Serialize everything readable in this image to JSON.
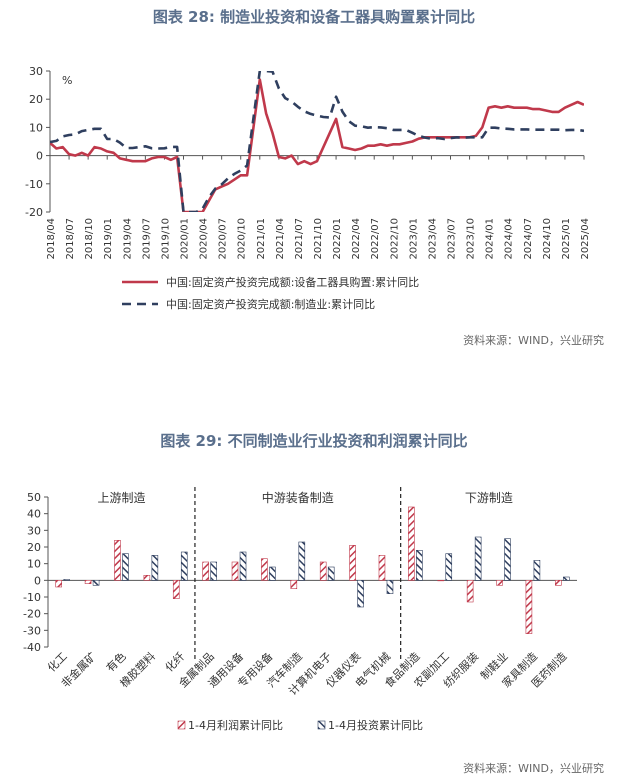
{
  "figure1": {
    "title": "图表 28: 制造业投资和设备工器具购置累计同比",
    "source": "资料来源：WIND，兴业研究",
    "chart_data": {
      "type": "line",
      "unit_label": "%",
      "ylim": [
        -20,
        30
      ],
      "yticks": [
        -20,
        -10,
        0,
        10,
        20,
        30
      ],
      "x": [
        "2018/04",
        "2018/07",
        "2018/10",
        "2019/01",
        "2019/04",
        "2019/07",
        "2019/10",
        "2020/01",
        "2020/04",
        "2020/07",
        "2020/10",
        "2021/01",
        "2021/04",
        "2021/07",
        "2021/10",
        "2022/01",
        "2022/04",
        "2022/07",
        "2022/10",
        "2023/01",
        "2023/04",
        "2023/07",
        "2023/10",
        "2024/01",
        "2024/04",
        "2024/07",
        "2024/10",
        "2025/01",
        "2025/04"
      ],
      "series": [
        {
          "name": "中国:固定资产投资完成额:设备工器具购置:累计同比",
          "color": "#c0394b",
          "style": "solid",
          "points": [
            [
              "2018/04",
              4.5
            ],
            [
              "2018/05",
              2.5
            ],
            [
              "2018/06",
              3
            ],
            [
              "2018/07",
              0.5
            ],
            [
              "2018/08",
              0
            ],
            [
              "2018/09",
              1
            ],
            [
              "2018/10",
              0
            ],
            [
              "2018/11",
              3
            ],
            [
              "2018/12",
              2.5
            ],
            [
              "2019/01",
              1.5
            ],
            [
              "2019/02",
              1
            ],
            [
              "2019/03",
              -1
            ],
            [
              "2019/04",
              -1.5
            ],
            [
              "2019/05",
              -2
            ],
            [
              "2019/06",
              -2
            ],
            [
              "2019/07",
              -2
            ],
            [
              "2019/08",
              -1
            ],
            [
              "2019/09",
              -0.5
            ],
            [
              "2019/10",
              -0.5
            ],
            [
              "2019/11",
              -1.5
            ],
            [
              "2019/12",
              -0.5
            ],
            [
              "2020/01",
              -20
            ],
            [
              "2020/02",
              -20
            ],
            [
              "2020/03",
              -20
            ],
            [
              "2020/04",
              -20
            ],
            [
              "2020/05",
              -16
            ],
            [
              "2020/06",
              -12
            ],
            [
              "2020/07",
              -11
            ],
            [
              "2020/08",
              -10
            ],
            [
              "2020/09",
              -8.5
            ],
            [
              "2020/10",
              -7
            ],
            [
              "2020/11",
              -7
            ],
            [
              "2021/01",
              27
            ],
            [
              "2021/02",
              15
            ],
            [
              "2021/03",
              8
            ],
            [
              "2021/04",
              -0.5
            ],
            [
              "2021/05",
              -1
            ],
            [
              "2021/06",
              0
            ],
            [
              "2021/07",
              -3
            ],
            [
              "2021/08",
              -2
            ],
            [
              "2021/09",
              -3
            ],
            [
              "2021/10",
              -2
            ],
            [
              "2022/01",
              13
            ],
            [
              "2022/02",
              3
            ],
            [
              "2022/03",
              2.5
            ],
            [
              "2022/04",
              2
            ],
            [
              "2022/05",
              2.5
            ],
            [
              "2022/06",
              3.5
            ],
            [
              "2022/07",
              3.5
            ],
            [
              "2022/08",
              4
            ],
            [
              "2022/09",
              3.5
            ],
            [
              "2022/10",
              4
            ],
            [
              "2022/11",
              4
            ],
            [
              "2022/12",
              4.5
            ],
            [
              "2023/01",
              5
            ],
            [
              "2023/02",
              6
            ],
            [
              "2023/03",
              6.5
            ],
            [
              "2023/04",
              6.5
            ],
            [
              "2023/05",
              6.5
            ],
            [
              "2023/06",
              6.5
            ],
            [
              "2023/07",
              6.5
            ],
            [
              "2023/08",
              6.5
            ],
            [
              "2023/09",
              6.5
            ],
            [
              "2023/10",
              6.5
            ],
            [
              "2023/11",
              7
            ],
            [
              "2023/12",
              10
            ],
            [
              "2024/01",
              17
            ],
            [
              "2024/02",
              17.5
            ],
            [
              "2024/03",
              17
            ],
            [
              "2024/04",
              17.5
            ],
            [
              "2024/05",
              17
            ],
            [
              "2024/06",
              17
            ],
            [
              "2024/07",
              17
            ],
            [
              "2024/08",
              16.5
            ],
            [
              "2024/09",
              16.5
            ],
            [
              "2024/10",
              16
            ],
            [
              "2024/11",
              15.5
            ],
            [
              "2024/12",
              15.5
            ],
            [
              "2025/01",
              17
            ],
            [
              "2025/02",
              18
            ],
            [
              "2025/03",
              19
            ],
            [
              "2025/04",
              18
            ]
          ]
        },
        {
          "name": "中国:固定资产投资完成额:制造业:累计同比",
          "color": "#2f3f5f",
          "style": "dashed",
          "points": [
            [
              "2018/04",
              4.8
            ],
            [
              "2018/05",
              5.2
            ],
            [
              "2018/06",
              6.8
            ],
            [
              "2018/07",
              7.3
            ],
            [
              "2018/08",
              7.5
            ],
            [
              "2018/09",
              8.7
            ],
            [
              "2018/10",
              9.1
            ],
            [
              "2018/11",
              9.5
            ],
            [
              "2018/12",
              9.5
            ],
            [
              "2019/01",
              5.9
            ],
            [
              "2019/02",
              5.9
            ],
            [
              "2019/03",
              4.6
            ],
            [
              "2019/04",
              2.7
            ],
            [
              "2019/05",
              2.7
            ],
            [
              "2019/06",
              3
            ],
            [
              "2019/07",
              3.3
            ],
            [
              "2019/08",
              2.6
            ],
            [
              "2019/09",
              2.5
            ],
            [
              "2019/10",
              2.6
            ],
            [
              "2019/11",
              3.1
            ],
            [
              "2019/12",
              3.1
            ],
            [
              "2020/01",
              -20
            ],
            [
              "2020/02",
              -20
            ],
            [
              "2020/03",
              -20
            ],
            [
              "2020/04",
              -18.8
            ],
            [
              "2020/05",
              -14.8
            ],
            [
              "2020/06",
              -11.7
            ],
            [
              "2020/07",
              -10.2
            ],
            [
              "2020/08",
              -8.1
            ],
            [
              "2020/09",
              -6.5
            ],
            [
              "2020/10",
              -5.3
            ],
            [
              "2020/11",
              -3.5
            ],
            [
              "2021/01",
              30
            ],
            [
              "2021/02",
              30
            ],
            [
              "2021/03",
              29.8
            ],
            [
              "2021/04",
              23.8
            ],
            [
              "2021/05",
              20.4
            ],
            [
              "2021/06",
              19.2
            ],
            [
              "2021/07",
              17.3
            ],
            [
              "2021/08",
              15.7
            ],
            [
              "2021/09",
              14.8
            ],
            [
              "2021/10",
              14.2
            ],
            [
              "2021/11",
              13.7
            ],
            [
              "2021/12",
              13.5
            ],
            [
              "2022/01",
              20.9
            ],
            [
              "2022/02",
              15.6
            ],
            [
              "2022/03",
              12.2
            ],
            [
              "2022/04",
              10.6
            ],
            [
              "2022/05",
              10.4
            ],
            [
              "2022/06",
              9.9
            ],
            [
              "2022/07",
              10.1
            ],
            [
              "2022/08",
              10
            ],
            [
              "2022/09",
              9.7
            ],
            [
              "2022/10",
              9.1
            ],
            [
              "2022/11",
              9.1
            ],
            [
              "2022/12",
              9.1
            ],
            [
              "2023/01",
              8.1
            ],
            [
              "2023/02",
              7
            ],
            [
              "2023/03",
              6.4
            ],
            [
              "2023/04",
              6
            ],
            [
              "2023/05",
              6.2
            ],
            [
              "2023/06",
              5.9
            ],
            [
              "2023/07",
              6.2
            ],
            [
              "2023/08",
              6.5
            ],
            [
              "2023/09",
              6.3
            ],
            [
              "2023/10",
              6.5
            ],
            [
              "2023/11",
              6.5
            ],
            [
              "2023/12",
              6.5
            ],
            [
              "2024/01",
              9.9
            ],
            [
              "2024/02",
              9.9
            ],
            [
              "2024/03",
              9.6
            ],
            [
              "2024/04",
              9.5
            ],
            [
              "2024/05",
              9.3
            ],
            [
              "2024/06",
              9.3
            ],
            [
              "2024/07",
              9.3
            ],
            [
              "2024/08",
              9.2
            ],
            [
              "2024/09",
              9.2
            ],
            [
              "2024/10",
              9.2
            ],
            [
              "2024/11",
              9.2
            ],
            [
              "2024/12",
              9.2
            ],
            [
              "2025/01",
              9
            ],
            [
              "2025/02",
              9.1
            ],
            [
              "2025/03",
              9.1
            ],
            [
              "2025/04",
              8.8
            ]
          ]
        }
      ]
    }
  },
  "figure2": {
    "title": "图表 29: 不同制造业行业投资和利润累计同比",
    "source": "资料来源：WIND，兴业研究",
    "chart_data": {
      "type": "bar",
      "ylim": [
        -40,
        50
      ],
      "yticks": [
        -40,
        -30,
        -20,
        -10,
        0,
        10,
        20,
        30,
        40,
        50
      ],
      "groups": [
        {
          "label": "上游制造",
          "start": 0,
          "end": 4
        },
        {
          "label": "中游装备制造",
          "start": 5,
          "end": 11
        },
        {
          "label": "下游制造",
          "start": 12,
          "end": 17
        }
      ],
      "categories": [
        "化工",
        "非金属矿",
        "有色",
        "橡胶塑料",
        "化纤",
        "金属制品",
        "通用设备",
        "专用设备",
        "汽车制造",
        "计算机电子",
        "仪器仪表",
        "电气机械",
        "食品制造",
        "农副加工",
        "纺织服装",
        "制鞋业",
        "家具制造",
        "医药制造"
      ],
      "series": [
        {
          "name": "1-4月利润累计同比",
          "color": "#c0394b",
          "values": [
            -4,
            -2,
            24,
            3,
            -11,
            11,
            11,
            13,
            -5,
            11,
            21,
            15,
            44,
            0,
            -13,
            -3,
            -32,
            -3
          ]
        },
        {
          "name": "1-4月投资累计同比",
          "color": "#2f3f5f",
          "values": [
            0.5,
            -3,
            16,
            15,
            17,
            11,
            17,
            8,
            23,
            8,
            -16,
            -8,
            18,
            16,
            26,
            25,
            12,
            2
          ]
        }
      ]
    }
  }
}
